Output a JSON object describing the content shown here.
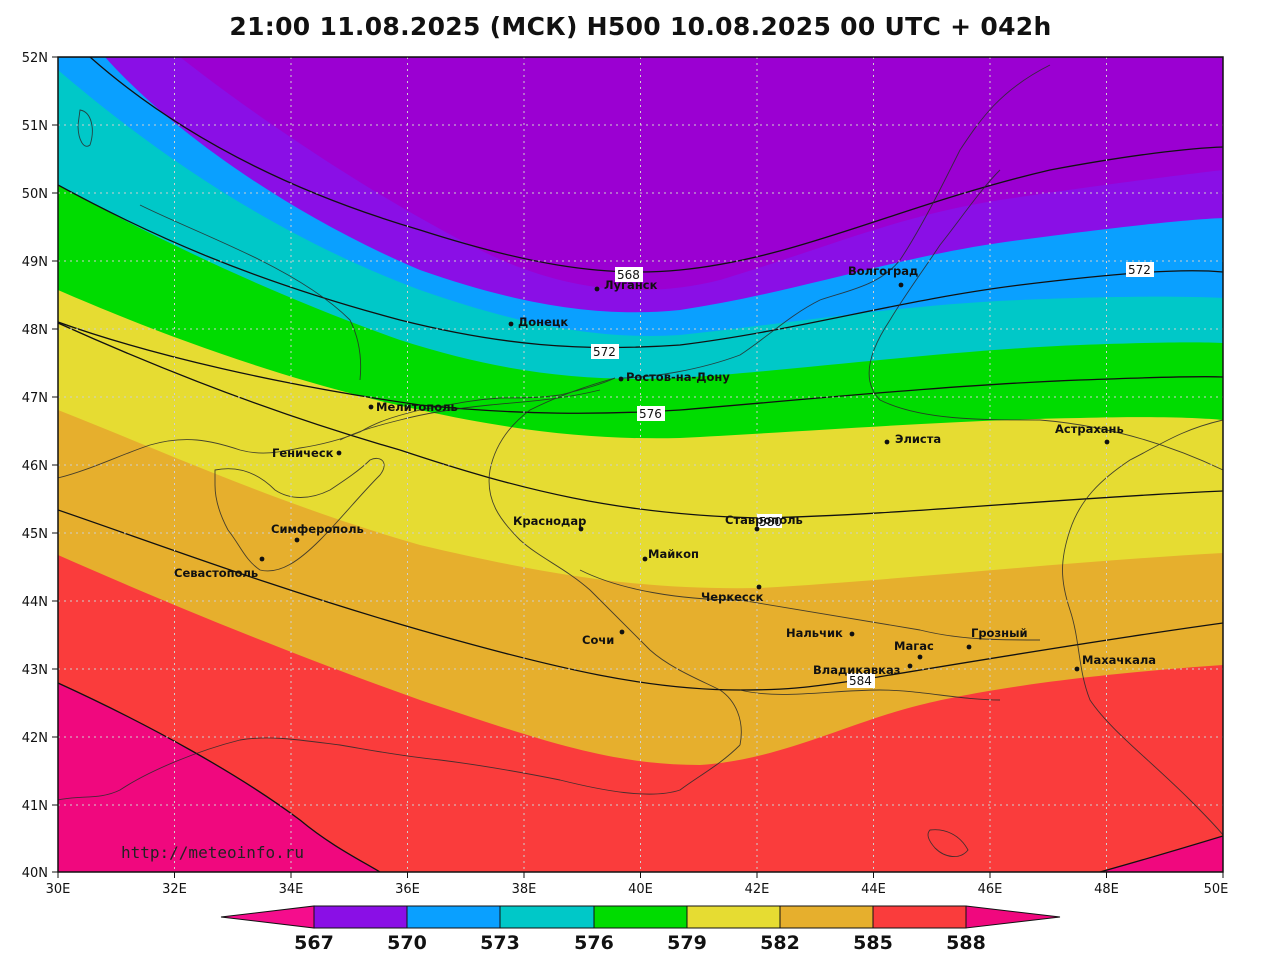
{
  "title": "21:00 11.08.2025 (МСК) H500  10.08.2025 00 UTC + 042h",
  "watermark": "http://meteoinfo.ru",
  "axes": {
    "lat_ticks": [
      "52N",
      "51N",
      "50N",
      "49N",
      "48N",
      "47N",
      "46N",
      "45N",
      "44N",
      "43N",
      "42N",
      "41N",
      "40N"
    ],
    "lon_ticks": [
      "30E",
      "32E",
      "34E",
      "36E",
      "38E",
      "40E",
      "42E",
      "44E",
      "46E",
      "48E",
      "50E"
    ]
  },
  "colors": {
    "c567": "#f50d8c",
    "c570": "#9b00d2",
    "c570b": "#8a0fe6",
    "c573": "#0aa0ff",
    "c576": "#00c8c8",
    "c579": "#00dc00",
    "c582": "#e6dc32",
    "c585": "#e6af2d",
    "c588": "#fa3c3c",
    "c591": "#f0087e"
  },
  "colorbar": {
    "labels": [
      "567",
      "570",
      "573",
      "576",
      "579",
      "582",
      "585",
      "588"
    ]
  },
  "contour_labels": [
    "568",
    "572",
    "572",
    "576",
    "580",
    "584"
  ],
  "cities": [
    {
      "name": "Луганск"
    },
    {
      "name": "Донецк"
    },
    {
      "name": "Волгоград"
    },
    {
      "name": "Ростов-на-Дону"
    },
    {
      "name": "Мелитополь"
    },
    {
      "name": "Элиста"
    },
    {
      "name": "Астрахань"
    },
    {
      "name": "Геническ"
    },
    {
      "name": "Симферополь"
    },
    {
      "name": "Севастополь"
    },
    {
      "name": "Краснодар"
    },
    {
      "name": "Майкоп"
    },
    {
      "name": "Ставрополь"
    },
    {
      "name": "Черкесск"
    },
    {
      "name": "Сочи"
    },
    {
      "name": "Нальчик"
    },
    {
      "name": "Магас"
    },
    {
      "name": "Грозный"
    },
    {
      "name": "Владикавказ"
    },
    {
      "name": "Махачкала"
    }
  ]
}
